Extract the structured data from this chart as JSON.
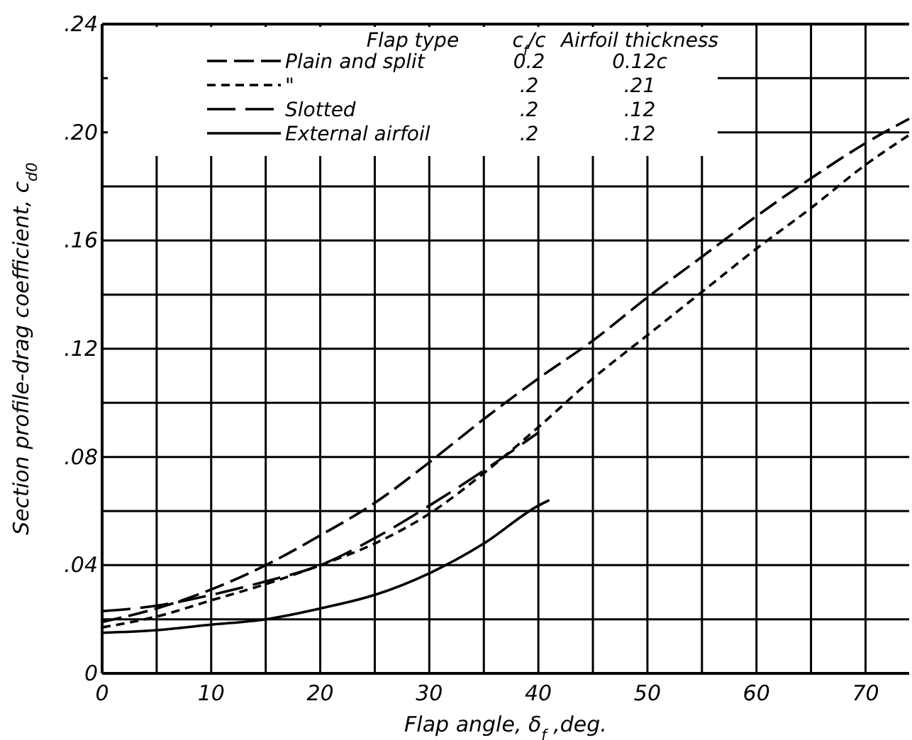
{
  "chart_data": {
    "type": "line",
    "xlabel": "Flap angle, δ$_{f}$ ,deg.",
    "ylabel": "Section profile-drag coefficient, c$_{d0}$",
    "legend_title": "Flap type",
    "legend": "top left",
    "grid": true,
    "marker": "none",
    "xlim": [
      0,
      74
    ],
    "ylim": [
      0,
      0.24
    ],
    "xticks": [
      0,
      {
        "value": 5,
        "label": null
      },
      10,
      {
        "value": 15,
        "label": null
      },
      20,
      {
        "value": 25,
        "label": null
      },
      30,
      {
        "value": 35,
        "label": null
      },
      40,
      {
        "value": 45,
        "label": null
      },
      50,
      {
        "value": 55,
        "label": null
      },
      60,
      {
        "value": 65,
        "label": null
      },
      70
    ],
    "yticks": [
      {
        "value": 0,
        "label": "0"
      },
      {
        "value": 0.02,
        "label": null
      },
      {
        "value": 0.04,
        "label": ".04"
      },
      {
        "value": 0.06,
        "label": null
      },
      {
        "value": 0.08,
        "label": ".08"
      },
      {
        "value": 0.1,
        "label": null
      },
      {
        "value": 0.12,
        "label": ".12"
      },
      {
        "value": 0.14,
        "label": null
      },
      {
        "value": 0.16,
        "label": ".16"
      },
      {
        "value": 0.18,
        "label": null
      },
      {
        "value": 0.2,
        "label": ".20"
      },
      {
        "value": 0.22,
        "label": null
      },
      {
        "value": 0.24,
        "label": ".24"
      }
    ],
    "annotations": [
      "c$_{f}$/c",
      "Airfoil thickness",
      "0.2",
      "0.12c",
      ".2",
      ".21",
      ".2",
      ".12",
      ".2",
      ".12"
    ],
    "series": [
      {
        "name": "Plain and split",
        "color": "#000000",
        "line_style": "dashed",
        "x": [
          0,
          5,
          10,
          15,
          20,
          25,
          30,
          35,
          40,
          45,
          50,
          55,
          60,
          65,
          70,
          74
        ],
        "values": [
          0.019,
          0.024,
          0.031,
          0.04,
          0.051,
          0.063,
          0.078,
          0.094,
          0.109,
          0.123,
          0.139,
          0.154,
          0.169,
          0.183,
          0.196,
          0.205
        ]
      },
      {
        "name": "\"",
        "color": "#000000",
        "line_style": "dashed",
        "x": [
          0,
          5,
          10,
          15,
          20,
          25,
          30,
          35,
          40,
          45,
          50,
          55,
          60,
          65,
          70,
          74
        ],
        "values": [
          0.017,
          0.021,
          0.027,
          0.033,
          0.04,
          0.048,
          0.059,
          0.074,
          0.091,
          0.109,
          0.125,
          0.141,
          0.157,
          0.172,
          0.188,
          0.199
        ]
      },
      {
        "name": "Slotted",
        "color": "#000000",
        "line_style": "dashed",
        "x": [
          0,
          5,
          10,
          15,
          20,
          25,
          30,
          35,
          40
        ],
        "values": [
          0.023,
          0.025,
          0.029,
          0.034,
          0.04,
          0.05,
          0.062,
          0.075,
          0.089
        ]
      },
      {
        "name": "External airfoil",
        "color": "#000000",
        "line_style": "solid",
        "x": [
          0,
          5,
          10,
          15,
          20,
          25,
          30,
          35,
          40,
          41
        ],
        "values": [
          0.015,
          0.016,
          0.018,
          0.02,
          0.024,
          0.029,
          0.037,
          0.048,
          0.062,
          0.064
        ]
      }
    ]
  }
}
